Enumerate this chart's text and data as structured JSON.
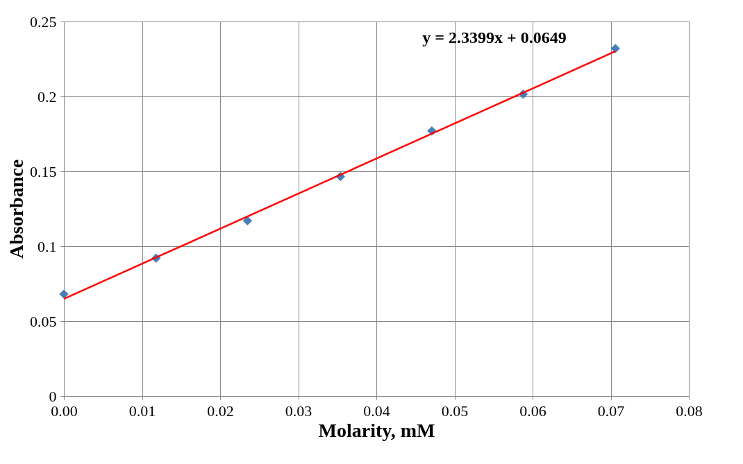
{
  "chart_data": {
    "type": "scatter",
    "xlabel": "Molarity, mM",
    "ylabel": "Absorbance",
    "annotations": [
      "y = 2.3399x + 0.0649"
    ],
    "series": [
      {
        "color": "#4a7ebb",
        "marker": "diamond",
        "x": [
          0,
          0.0118,
          0.0235,
          0.0354,
          0.0471,
          0.0588,
          0.0706
        ],
        "values": [
          0.068,
          0.092,
          0.117,
          0.1465,
          0.177,
          0.2015,
          0.232
        ]
      },
      {
        "type": "line",
        "color": "#ff0000",
        "line_style": "solid",
        "marker": "none",
        "x": [
          0,
          0.0706
        ],
        "values": [
          0.0649,
          0.2301
        ]
      }
    ],
    "xlim": [
      0,
      0.08
    ],
    "ylim": [
      0,
      0.25
    ],
    "xticks": [
      {
        "value": 0,
        "label": "0.00"
      },
      {
        "value": 0.01,
        "label": "0.01"
      },
      {
        "value": 0.02,
        "label": "0.02"
      },
      {
        "value": 0.03,
        "label": "0.03"
      },
      {
        "value": 0.04,
        "label": "0.04"
      },
      {
        "value": 0.05,
        "label": "0.05"
      },
      {
        "value": 0.06,
        "label": "0.06"
      },
      {
        "value": 0.07,
        "label": "0.07"
      },
      {
        "value": 0.08,
        "label": "0.08"
      }
    ],
    "yticks": [
      0,
      0.05,
      0.1,
      0.15,
      0.2,
      0.25
    ],
    "grid": true
  }
}
